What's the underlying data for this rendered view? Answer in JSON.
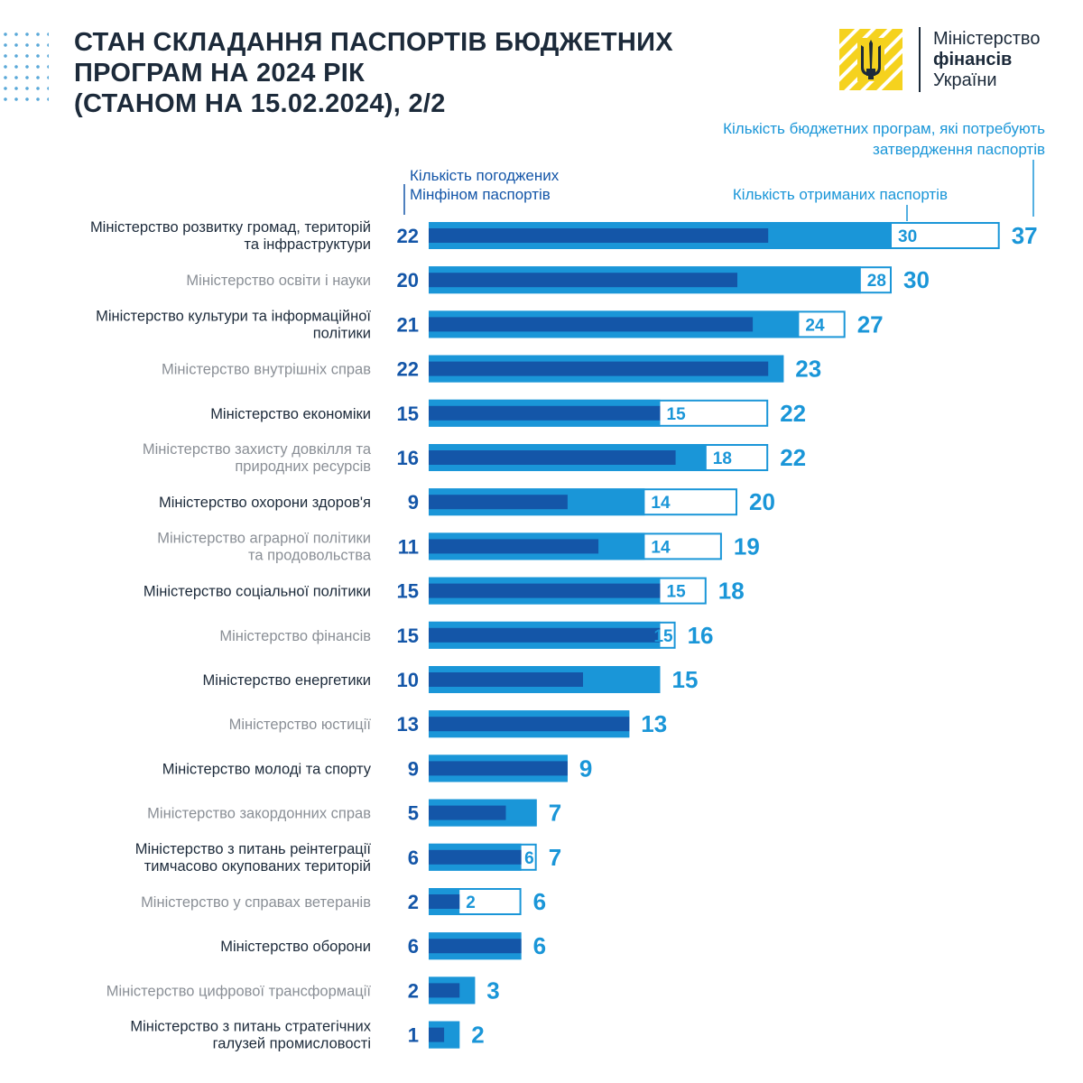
{
  "header": {
    "title_lines": [
      "СТАН СКЛАДАННЯ ПАСПОРТІВ БЮДЖЕТНИХ",
      "ПРОГРАМ НА 2024 РІК",
      "(СТАНОМ НА 15.02.2024), 2/2"
    ]
  },
  "logo": {
    "line1": "Міністерство",
    "line2": "фінансів",
    "line3": "України"
  },
  "colors": {
    "approved": "#1456a8",
    "received": "#1a96d8",
    "total_outline": "#1a96d8",
    "label_dark": "#1c2a3a",
    "label_light": "#8a8f96"
  },
  "chart_data": {
    "type": "bar",
    "orientation": "horizontal",
    "legend": {
      "approved": "Кількість погоджених Мінфіном паспортів",
      "received": "Кількість отриманих паспортів",
      "total": "Кількість бюджетних програм, які потребують затвердження паспортів"
    },
    "categories": [
      "Міністерство розвитку громад, територій та інфраструктури",
      "Міністерство освіти і науки",
      "Міністерство культури та інформаційної політики",
      "Міністерство внутрішніх справ",
      "Міністерство економіки",
      "Міністерство захисту довкілля та природних ресурсів",
      "Міністерство охорони здоров'я",
      "Міністерство аграрної політики та продовольства",
      "Міністерство соціальної політики",
      "Міністерство фінансів",
      "Міністерство енергетики",
      "Міністерство юстиції",
      "Міністерство молоді та спорту",
      "Міністерство закордонних справ",
      "Міністерство з питань  реінтеграції тимчасово окупованих територій",
      "Міністерство у справах ветеранів",
      "Міністерство оборони",
      "Міністерство цифрової трансформації",
      "Міністерство з питань стратегічних галузей промисловості"
    ],
    "label_lines": [
      [
        "Міністерство розвитку громад, територій",
        "та інфраструктури"
      ],
      [
        "Міністерство освіти і науки"
      ],
      [
        "Міністерство культури та інформаційної",
        "політики"
      ],
      [
        "Міністерство внутрішніх справ"
      ],
      [
        "Міністерство економіки"
      ],
      [
        "Міністерство захисту довкілля та",
        "природних ресурсів"
      ],
      [
        "Міністерство охорони здоров'я"
      ],
      [
        "Міністерство аграрної політики",
        "та продовольства"
      ],
      [
        "Міністерство соціальної політики"
      ],
      [
        "Міністерство фінансів"
      ],
      [
        "Міністерство енергетики"
      ],
      [
        "Міністерство юстиції"
      ],
      [
        "Міністерство молоді та спорту"
      ],
      [
        "Міністерство закордонних справ"
      ],
      [
        "Міністерство з питань  реінтеграції",
        "тимчасово окупованих територій"
      ],
      [
        "Міністерство у справах ветеранів"
      ],
      [
        "Міністерство оборони"
      ],
      [
        "Міністерство цифрової трансформації"
      ],
      [
        "Міністерство з питань стратегічних",
        "галузей промисловості"
      ]
    ],
    "label_tone": [
      "dark",
      "light",
      "dark",
      "light",
      "dark",
      "light",
      "dark",
      "light",
      "dark",
      "light",
      "dark",
      "light",
      "dark",
      "light",
      "dark",
      "light",
      "dark",
      "light",
      "dark"
    ],
    "series": [
      {
        "name": "Кількість погоджених Мінфіном паспортів",
        "values": [
          22,
          20,
          21,
          22,
          15,
          16,
          9,
          11,
          15,
          15,
          10,
          13,
          9,
          5,
          6,
          2,
          6,
          2,
          1
        ]
      },
      {
        "name": "Кількість отриманих паспортів",
        "values": [
          30,
          28,
          24,
          23,
          15,
          18,
          14,
          14,
          15,
          15,
          15,
          13,
          9,
          7,
          6,
          2,
          6,
          3,
          2
        ]
      },
      {
        "name": "Кількість бюджетних програм, які потребують затвердження паспортів",
        "values": [
          37,
          30,
          27,
          23,
          22,
          22,
          20,
          19,
          18,
          16,
          15,
          13,
          9,
          7,
          7,
          6,
          6,
          3,
          2
        ]
      }
    ],
    "received_labels": [
      "30",
      "28",
      "24",
      "",
      "15",
      "18",
      "14",
      "14",
      "15",
      "15",
      "",
      "",
      "",
      "",
      "6",
      "2",
      "",
      "",
      ""
    ],
    "xlim": [
      0,
      37
    ]
  }
}
